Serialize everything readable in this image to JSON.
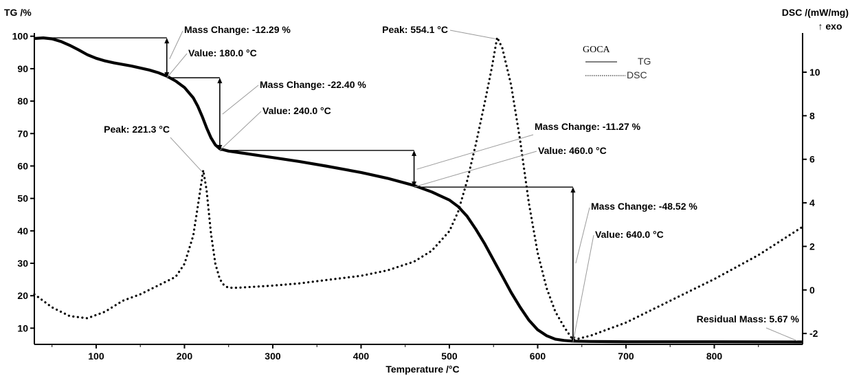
{
  "chart_data": {
    "type": "line",
    "xlabel": "Temperature /°C",
    "xlim": [
      30,
      900
    ],
    "x_ticks": [
      100,
      200,
      300,
      400,
      500,
      600,
      700,
      800
    ],
    "y_left": {
      "label": "TG /%",
      "lim": [
        5,
        101
      ],
      "ticks": [
        10,
        20,
        30,
        40,
        50,
        60,
        70,
        80,
        90,
        100
      ]
    },
    "y_right": {
      "label": "DSC /(mW/mg)",
      "sublabel": "↑ exo",
      "lim": [
        -2.5,
        11.8
      ],
      "ticks": [
        -2,
        0,
        2,
        4,
        6,
        8,
        10
      ]
    },
    "legend": {
      "title": "GOCA",
      "position": "top-right",
      "entries": [
        {
          "label": "TG",
          "style": "solid"
        },
        {
          "label": "DSC",
          "style": "dotted"
        }
      ]
    },
    "series": [
      {
        "name": "TG",
        "axis": "left",
        "style": "solid",
        "x": [
          30,
          40,
          50,
          60,
          70,
          80,
          90,
          100,
          110,
          120,
          140,
          160,
          170,
          180,
          190,
          200,
          210,
          215,
          220,
          225,
          230,
          235,
          240,
          250,
          270,
          300,
          330,
          360,
          400,
          430,
          460,
          480,
          500,
          510,
          520,
          530,
          540,
          550,
          560,
          570,
          580,
          590,
          600,
          610,
          620,
          630,
          640,
          660,
          700,
          800,
          900
        ],
        "y": [
          99.3,
          99.5,
          99.2,
          98.4,
          97.2,
          95.8,
          94.3,
          93.2,
          92.4,
          91.8,
          90.8,
          89.6,
          88.8,
          87.7,
          86.2,
          84.2,
          81.0,
          78.5,
          75.3,
          71.8,
          68.7,
          66.5,
          65.3,
          64.6,
          63.8,
          62.6,
          61.4,
          60.0,
          58.0,
          56.2,
          54.0,
          52.0,
          49.5,
          47.5,
          44.5,
          40.5,
          36.0,
          31.0,
          26.0,
          21.0,
          16.5,
          12.5,
          9.5,
          7.7,
          6.6,
          6.2,
          6.0,
          5.9,
          5.8,
          5.8,
          5.75
        ]
      },
      {
        "name": "DSC",
        "axis": "right",
        "style": "dotted",
        "x": [
          30,
          50,
          70,
          90,
          110,
          130,
          150,
          170,
          190,
          200,
          210,
          215,
          221.3,
          225,
          230,
          235,
          240,
          245,
          250,
          260,
          280,
          300,
          330,
          360,
          400,
          430,
          460,
          480,
          500,
          510,
          520,
          530,
          540,
          548,
          554.1,
          560,
          570,
          580,
          590,
          600,
          610,
          620,
          630,
          640,
          660,
          700,
          750,
          800,
          850,
          900
        ],
        "y": [
          -0.2,
          -0.8,
          -1.2,
          -1.3,
          -1.0,
          -0.5,
          -0.2,
          0.2,
          0.6,
          1.2,
          2.5,
          3.8,
          5.5,
          4.6,
          2.6,
          1.2,
          0.5,
          0.2,
          0.1,
          0.1,
          0.15,
          0.2,
          0.3,
          0.45,
          0.65,
          0.9,
          1.3,
          1.8,
          2.7,
          3.6,
          5.0,
          6.7,
          8.6,
          10.2,
          11.6,
          11.1,
          9.4,
          6.9,
          4.0,
          1.7,
          0.1,
          -1.0,
          -1.7,
          -2.3,
          -2.1,
          -1.5,
          -0.5,
          0.5,
          1.6,
          2.9
        ]
      }
    ],
    "annotations": {
      "mass_changes": [
        {
          "label": "Mass Change: -12.29 %",
          "from": 99.5,
          "to": 87.2,
          "at_x": 180
        },
        {
          "label": "Mass Change: -22.40 %",
          "from": 87.2,
          "to": 64.8,
          "at_x": 240
        },
        {
          "label": "Mass Change: -11.27 %",
          "from": 64.8,
          "to": 53.5,
          "at_x": 460
        },
        {
          "label": "Mass Change: -48.52 %",
          "from": 53.5,
          "to": 5.67,
          "at_x": 640
        }
      ],
      "values": [
        {
          "label": "Value: 180.0 °C",
          "x": 180
        },
        {
          "label": "Value: 240.0 °C",
          "x": 240
        },
        {
          "label": "Value: 460.0 °C",
          "x": 460
        },
        {
          "label": "Value: 640.0 °C",
          "x": 640
        }
      ],
      "peaks": [
        {
          "label": "Peak: 221.3 °C",
          "x": 221.3
        },
        {
          "label": "Peak: 554.1 °C",
          "x": 554.1
        }
      ],
      "residual": {
        "label": "Residual Mass: 5.67 %",
        "x": 900
      }
    }
  }
}
